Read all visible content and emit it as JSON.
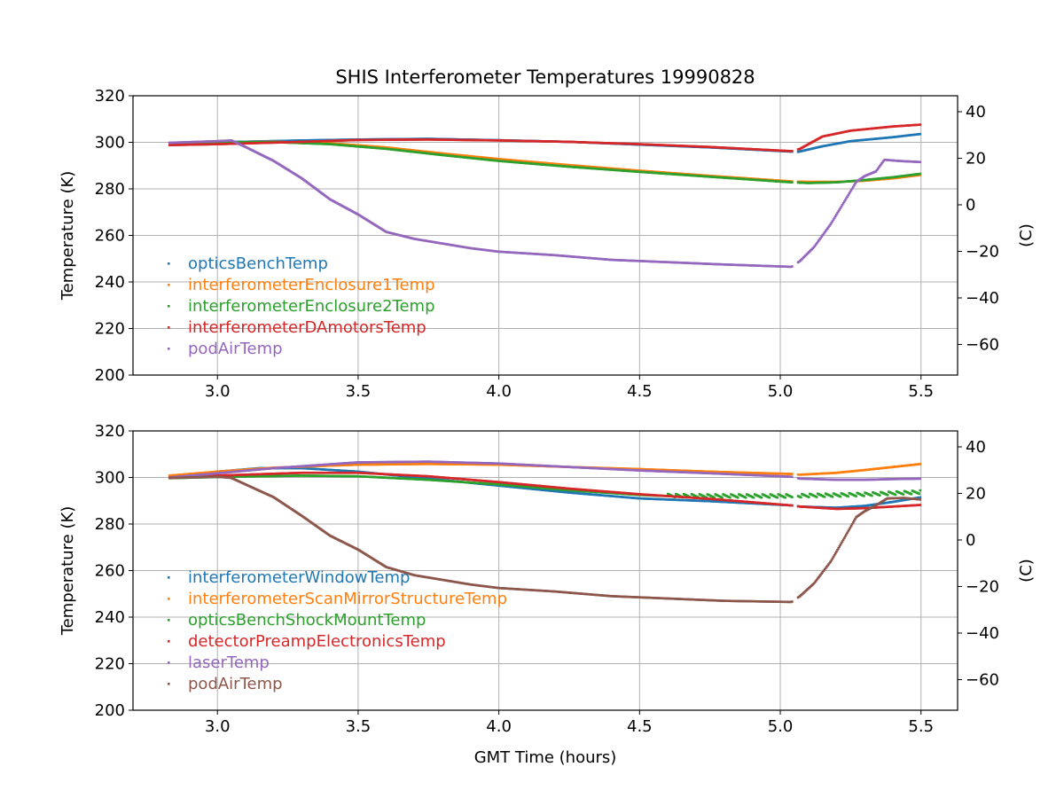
{
  "chart_data": {
    "title": "SHIS Interferometer Temperatures 19990828",
    "xlabel": "GMT Time (hours)",
    "xticks": [
      3.0,
      3.5,
      4.0,
      4.5,
      5.0,
      5.5
    ],
    "xtick_labels": [
      "3.0",
      "3.5",
      "4.0",
      "4.5",
      "5.0",
      "5.5"
    ],
    "xlim": [
      2.7,
      5.63
    ],
    "panels": [
      {
        "type": "scatter",
        "ylabel": "Temperature (K)",
        "ylabel_right": "(C)",
        "ylim": [
          200,
          320
        ],
        "yticks": [
          200,
          220,
          240,
          260,
          280,
          300,
          320
        ],
        "yticks_right": [
          -60,
          -40,
          -20,
          0,
          20,
          40
        ],
        "right_offset_K": 273.15,
        "grid": true,
        "legend_loc": "lower left",
        "series": [
          {
            "name": "opticsBenchTemp",
            "color": "#1f77b4",
            "points": [
              [
                2.83,
                299.5
              ],
              [
                3.0,
                300.0
              ],
              [
                3.3,
                300.8
              ],
              [
                3.5,
                301.2
              ],
              [
                3.75,
                301.5
              ],
              [
                4.0,
                300.9
              ],
              [
                4.25,
                300.2
              ],
              [
                4.5,
                299.0
              ],
              [
                4.75,
                297.8
              ],
              [
                5.04,
                296.0
              ],
              [
                5.06,
                295.8
              ],
              [
                5.15,
                298.3
              ],
              [
                5.25,
                300.5
              ],
              [
                5.4,
                302.2
              ],
              [
                5.5,
                303.6
              ]
            ]
          },
          {
            "name": "interferometerEnclosure1Temp",
            "color": "#ff7f0e",
            "points": [
              [
                2.83,
                299.6
              ],
              [
                3.0,
                300.0
              ],
              [
                3.2,
                300.2
              ],
              [
                3.4,
                299.6
              ],
              [
                3.6,
                297.8
              ],
              [
                3.8,
                295.2
              ],
              [
                4.0,
                292.8
              ],
              [
                4.25,
                290.2
              ],
              [
                4.5,
                287.8
              ],
              [
                4.75,
                285.6
              ],
              [
                5.04,
                283.2
              ],
              [
                5.1,
                283.0
              ],
              [
                5.2,
                283.0
              ],
              [
                5.3,
                283.5
              ],
              [
                5.4,
                284.5
              ],
              [
                5.5,
                286.0
              ]
            ]
          },
          {
            "name": "interferometerEnclosure2Temp",
            "color": "#2ca02c",
            "points": [
              [
                2.83,
                299.6
              ],
              [
                3.0,
                300.1
              ],
              [
                3.2,
                300.1
              ],
              [
                3.4,
                299.2
              ],
              [
                3.6,
                297.2
              ],
              [
                3.8,
                294.5
              ],
              [
                4.0,
                292.0
              ],
              [
                4.25,
                289.5
              ],
              [
                4.5,
                287.3
              ],
              [
                4.75,
                285.2
              ],
              [
                5.04,
                282.8
              ],
              [
                5.1,
                282.5
              ],
              [
                5.2,
                282.8
              ],
              [
                5.3,
                283.8
              ],
              [
                5.4,
                285.0
              ],
              [
                5.5,
                286.5
              ]
            ]
          },
          {
            "name": "interferometerDAmotorsTemp",
            "color": "#d62728",
            "points": [
              [
                2.83,
                298.8
              ],
              [
                3.0,
                299.2
              ],
              [
                3.3,
                300.2
              ],
              [
                3.5,
                301.0
              ],
              [
                3.75,
                301.2
              ],
              [
                4.0,
                300.8
              ],
              [
                4.25,
                300.2
              ],
              [
                4.5,
                299.2
              ],
              [
                4.75,
                298.0
              ],
              [
                5.04,
                296.2
              ],
              [
                5.07,
                297.2
              ],
              [
                5.15,
                302.5
              ],
              [
                5.25,
                305.0
              ],
              [
                5.4,
                306.8
              ],
              [
                5.5,
                307.6
              ]
            ]
          },
          {
            "name": "podAirTemp",
            "color": "#9467bd",
            "points": [
              [
                2.83,
                299.8
              ],
              [
                3.0,
                300.5
              ],
              [
                3.05,
                300.8
              ],
              [
                3.1,
                298.0
              ],
              [
                3.2,
                292.0
              ],
              [
                3.3,
                284.5
              ],
              [
                3.4,
                275.5
              ],
              [
                3.5,
                269.0
              ],
              [
                3.6,
                261.5
              ],
              [
                3.7,
                258.5
              ],
              [
                3.8,
                256.5
              ],
              [
                3.9,
                254.5
              ],
              [
                4.0,
                253.0
              ],
              [
                4.2,
                251.5
              ],
              [
                4.4,
                249.5
              ],
              [
                4.6,
                248.5
              ],
              [
                4.8,
                247.5
              ],
              [
                5.04,
                246.5
              ],
              [
                5.07,
                249.0
              ],
              [
                5.12,
                255.0
              ],
              [
                5.18,
                265.0
              ],
              [
                5.23,
                275.0
              ],
              [
                5.27,
                283.0
              ],
              [
                5.3,
                285.5
              ],
              [
                5.34,
                287.5
              ],
              [
                5.37,
                292.5
              ],
              [
                5.42,
                292.0
              ],
              [
                5.5,
                291.5
              ]
            ]
          }
        ]
      },
      {
        "type": "scatter",
        "ylabel": "Temperature (K)",
        "ylabel_right": "(C)",
        "ylim": [
          200,
          320
        ],
        "yticks": [
          200,
          220,
          240,
          260,
          280,
          300,
          320
        ],
        "yticks_right": [
          -60,
          -40,
          -20,
          0,
          20,
          40
        ],
        "right_offset_K": 273.15,
        "grid": true,
        "legend_loc": "lower left",
        "series": [
          {
            "name": "interferometerWindowTemp",
            "color": "#1f77b4",
            "points": [
              [
                2.83,
                300.0
              ],
              [
                3.0,
                302.5
              ],
              [
                3.15,
                304.0
              ],
              [
                3.3,
                304.0
              ],
              [
                3.5,
                302.5
              ],
              [
                3.75,
                299.5
              ],
              [
                4.0,
                296.5
              ],
              [
                4.25,
                293.5
              ],
              [
                4.5,
                291.0
              ],
              [
                4.75,
                289.8
              ],
              [
                5.04,
                288.0
              ],
              [
                5.07,
                287.5
              ],
              [
                5.2,
                287.0
              ],
              [
                5.3,
                287.8
              ],
              [
                5.4,
                289.5
              ],
              [
                5.5,
                291.5
              ]
            ]
          },
          {
            "name": "interferometerScanMirrorStructureTemp",
            "color": "#ff7f0e",
            "points": [
              [
                2.83,
                300.8
              ],
              [
                3.0,
                302.5
              ],
              [
                3.2,
                304.2
              ],
              [
                3.5,
                305.5
              ],
              [
                3.75,
                305.8
              ],
              [
                4.0,
                305.5
              ],
              [
                4.25,
                304.5
              ],
              [
                4.5,
                303.6
              ],
              [
                4.75,
                302.5
              ],
              [
                5.04,
                301.5
              ],
              [
                5.07,
                301.2
              ],
              [
                5.2,
                302.0
              ],
              [
                5.3,
                303.2
              ],
              [
                5.4,
                304.5
              ],
              [
                5.5,
                305.8
              ]
            ]
          },
          {
            "name": "opticsBenchShockMountTemp",
            "color": "#2ca02c",
            "points": [
              [
                2.83,
                299.7
              ],
              [
                3.0,
                300.2
              ],
              [
                3.3,
                300.8
              ],
              [
                3.5,
                300.5
              ],
              [
                3.75,
                299.0
              ],
              [
                4.0,
                297.0
              ],
              [
                4.25,
                294.5
              ],
              [
                4.5,
                292.5
              ],
              [
                4.6,
                292.0
              ],
              [
                4.75,
                291.8
              ],
              [
                5.04,
                291.8
              ],
              [
                5.1,
                292.0
              ],
              [
                5.2,
                292.2
              ],
              [
                5.3,
                292.5
              ],
              [
                5.4,
                293.0
              ],
              [
                5.5,
                293.5
              ]
            ]
          },
          {
            "name": "detectorPreampElectronicsTemp",
            "color": "#d62728",
            "points": [
              [
                2.83,
                300.0
              ],
              [
                3.0,
                300.8
              ],
              [
                3.3,
                302.0
              ],
              [
                3.5,
                302.0
              ],
              [
                3.75,
                300.5
              ],
              [
                4.0,
                298.0
              ],
              [
                4.25,
                295.2
              ],
              [
                4.5,
                292.8
              ],
              [
                4.75,
                290.8
              ],
              [
                5.04,
                288.0
              ],
              [
                5.07,
                287.5
              ],
              [
                5.2,
                286.5
              ],
              [
                5.3,
                286.8
              ],
              [
                5.4,
                287.5
              ],
              [
                5.5,
                288.2
              ]
            ]
          },
          {
            "name": "laserTemp",
            "color": "#9467bd",
            "points": [
              [
                2.83,
                300.0
              ],
              [
                3.0,
                301.8
              ],
              [
                3.2,
                304.0
              ],
              [
                3.5,
                306.5
              ],
              [
                3.75,
                306.8
              ],
              [
                4.0,
                306.0
              ],
              [
                4.25,
                304.5
              ],
              [
                4.5,
                303.0
              ],
              [
                4.75,
                301.8
              ],
              [
                5.04,
                300.3
              ],
              [
                5.07,
                299.5
              ],
              [
                5.2,
                299.0
              ],
              [
                5.3,
                299.0
              ],
              [
                5.4,
                299.3
              ],
              [
                5.5,
                299.5
              ]
            ]
          },
          {
            "name": "podAirTemp",
            "color": "#8c564b",
            "points": [
              [
                2.83,
                299.8
              ],
              [
                3.0,
                300.3
              ],
              [
                3.05,
                299.8
              ],
              [
                3.1,
                297.0
              ],
              [
                3.2,
                291.5
              ],
              [
                3.3,
                283.5
              ],
              [
                3.4,
                275.0
              ],
              [
                3.5,
                269.0
              ],
              [
                3.6,
                261.5
              ],
              [
                3.7,
                258.0
              ],
              [
                3.8,
                256.0
              ],
              [
                3.9,
                254.0
              ],
              [
                4.0,
                252.5
              ],
              [
                4.2,
                251.0
              ],
              [
                4.4,
                249.0
              ],
              [
                4.6,
                248.0
              ],
              [
                4.8,
                247.0
              ],
              [
                5.04,
                246.5
              ],
              [
                5.07,
                249.0
              ],
              [
                5.12,
                254.5
              ],
              [
                5.18,
                264.0
              ],
              [
                5.23,
                274.5
              ],
              [
                5.27,
                283.0
              ],
              [
                5.3,
                285.5
              ],
              [
                5.34,
                288.0
              ],
              [
                5.38,
                291.0
              ],
              [
                5.44,
                291.2
              ],
              [
                5.5,
                290.5
              ]
            ]
          }
        ]
      }
    ]
  }
}
